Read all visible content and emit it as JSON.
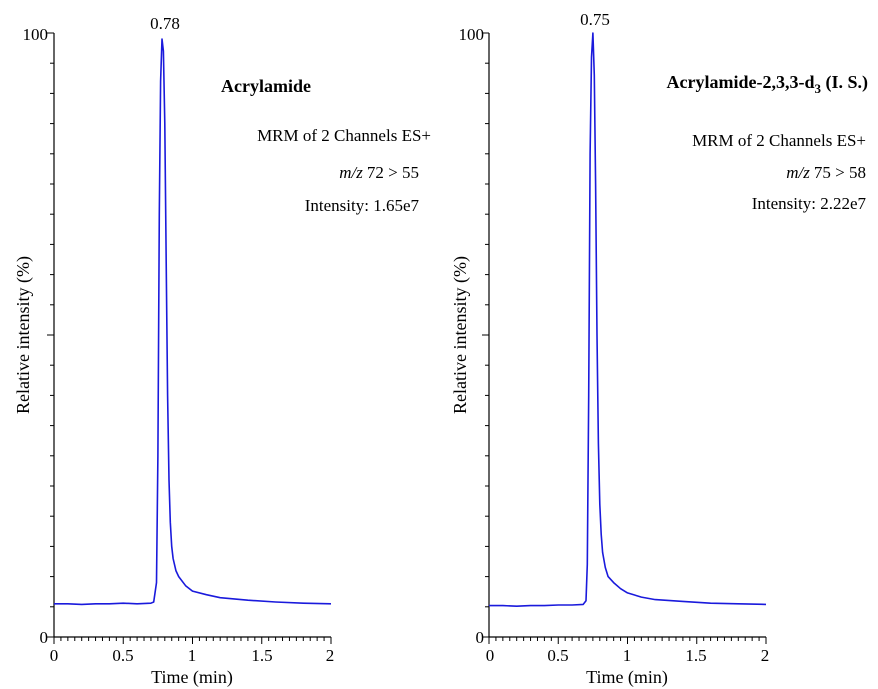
{
  "chart_data": [
    {
      "type": "line",
      "id": "left",
      "compound": "Acrylamide",
      "compound_sub": "",
      "compound_suffix": "",
      "annotations": [
        "MRM of 2 Channels ES+",
        "72 > 55",
        "Intensity: 1.65e7"
      ],
      "mz_prefix": "m/z",
      "peak_label": "0.78",
      "peak_time": 0.78,
      "xlabel": "Time (min)",
      "ylabel": "Relative intensity (%)",
      "xlim": [
        0,
        2
      ],
      "ylim": [
        0,
        100
      ],
      "x_ticks": [
        "0",
        "0.5",
        "1",
        "1.5",
        "2"
      ],
      "y_ticks": [
        "0",
        "100"
      ],
      "color": "#1a1adc",
      "x": [
        0,
        0.1,
        0.2,
        0.3,
        0.4,
        0.5,
        0.6,
        0.7,
        0.72,
        0.74,
        0.75,
        0.76,
        0.77,
        0.78,
        0.79,
        0.8,
        0.81,
        0.82,
        0.83,
        0.84,
        0.85,
        0.86,
        0.88,
        0.9,
        0.95,
        1.0,
        1.1,
        1.2,
        1.4,
        1.6,
        1.8,
        2.0
      ],
      "y": [
        5.5,
        5.5,
        5.4,
        5.5,
        5.5,
        5.6,
        5.5,
        5.6,
        5.8,
        9,
        30,
        70,
        92,
        99,
        97,
        85,
        62,
        40,
        26,
        19,
        15,
        13,
        11,
        10,
        8.5,
        7.6,
        7.0,
        6.5,
        6.1,
        5.8,
        5.6,
        5.5
      ]
    },
    {
      "type": "line",
      "id": "right",
      "compound": "Acrylamide-2,3,3-d",
      "compound_sub": "3",
      "compound_suffix": " (I. S.)",
      "annotations": [
        "MRM of 2 Channels ES+",
        "75 > 58",
        "Intensity: 2.22e7"
      ],
      "mz_prefix": "m/z",
      "peak_label": "0.75",
      "peak_time": 0.75,
      "xlabel": "Time (min)",
      "ylabel": "Relative intensity (%)",
      "xlim": [
        0,
        2
      ],
      "ylim": [
        0,
        100
      ],
      "x_ticks": [
        "0",
        "0.5",
        "1",
        "1.5",
        "2"
      ],
      "y_ticks": [
        "0",
        "100"
      ],
      "color": "#1a1adc",
      "x": [
        0,
        0.1,
        0.2,
        0.3,
        0.4,
        0.5,
        0.6,
        0.68,
        0.7,
        0.71,
        0.72,
        0.73,
        0.74,
        0.75,
        0.76,
        0.77,
        0.78,
        0.79,
        0.8,
        0.81,
        0.82,
        0.84,
        0.86,
        0.9,
        0.95,
        1.0,
        1.1,
        1.2,
        1.4,
        1.6,
        1.8,
        2.0
      ],
      "y": [
        5.2,
        5.2,
        5.1,
        5.2,
        5.2,
        5.3,
        5.3,
        5.4,
        6,
        12,
        40,
        80,
        96,
        100,
        93,
        75,
        50,
        32,
        22,
        17,
        14,
        11.5,
        10,
        9,
        8,
        7.3,
        6.6,
        6.2,
        5.9,
        5.6,
        5.5,
        5.4
      ]
    }
  ]
}
